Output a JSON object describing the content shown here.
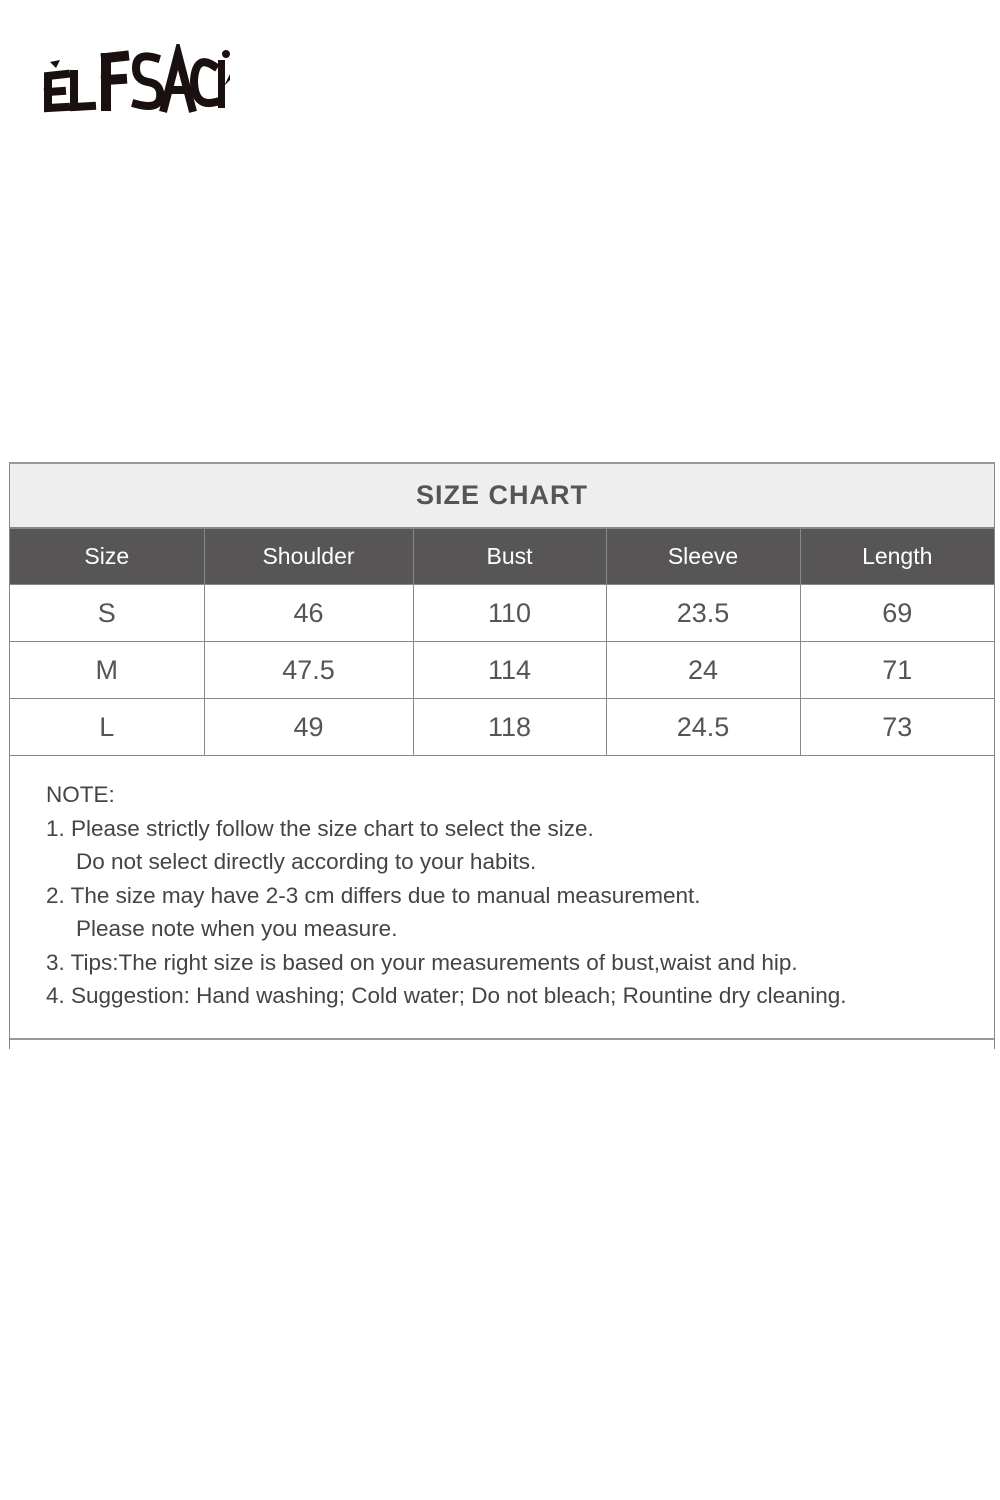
{
  "brand": {
    "logo_text": "ELFSACK"
  },
  "size_chart": {
    "title": "SIZE CHART",
    "columns": [
      "Size",
      "Shoulder",
      "Bust",
      "Sleeve",
      "Length"
    ],
    "rows": [
      [
        "S",
        "46",
        "110",
        "23.5",
        "69"
      ],
      [
        "M",
        "47.5",
        "114",
        "24",
        "71"
      ],
      [
        "L",
        "49",
        "118",
        "24.5",
        "73"
      ]
    ]
  },
  "notes": {
    "heading": "NOTE:",
    "lines": [
      "1. Please strictly follow the size chart to select the size.",
      "Do not select directly according to your habits.",
      "2. The size may have 2-3 cm differs due to manual measurement.",
      "Please note when you measure.",
      "3. Tips:The right size is based on your measurements of bust,waist and hip.",
      "4. Suggestion: Hand washing; Cold water; Do not bleach; Rountine dry cleaning."
    ]
  }
}
